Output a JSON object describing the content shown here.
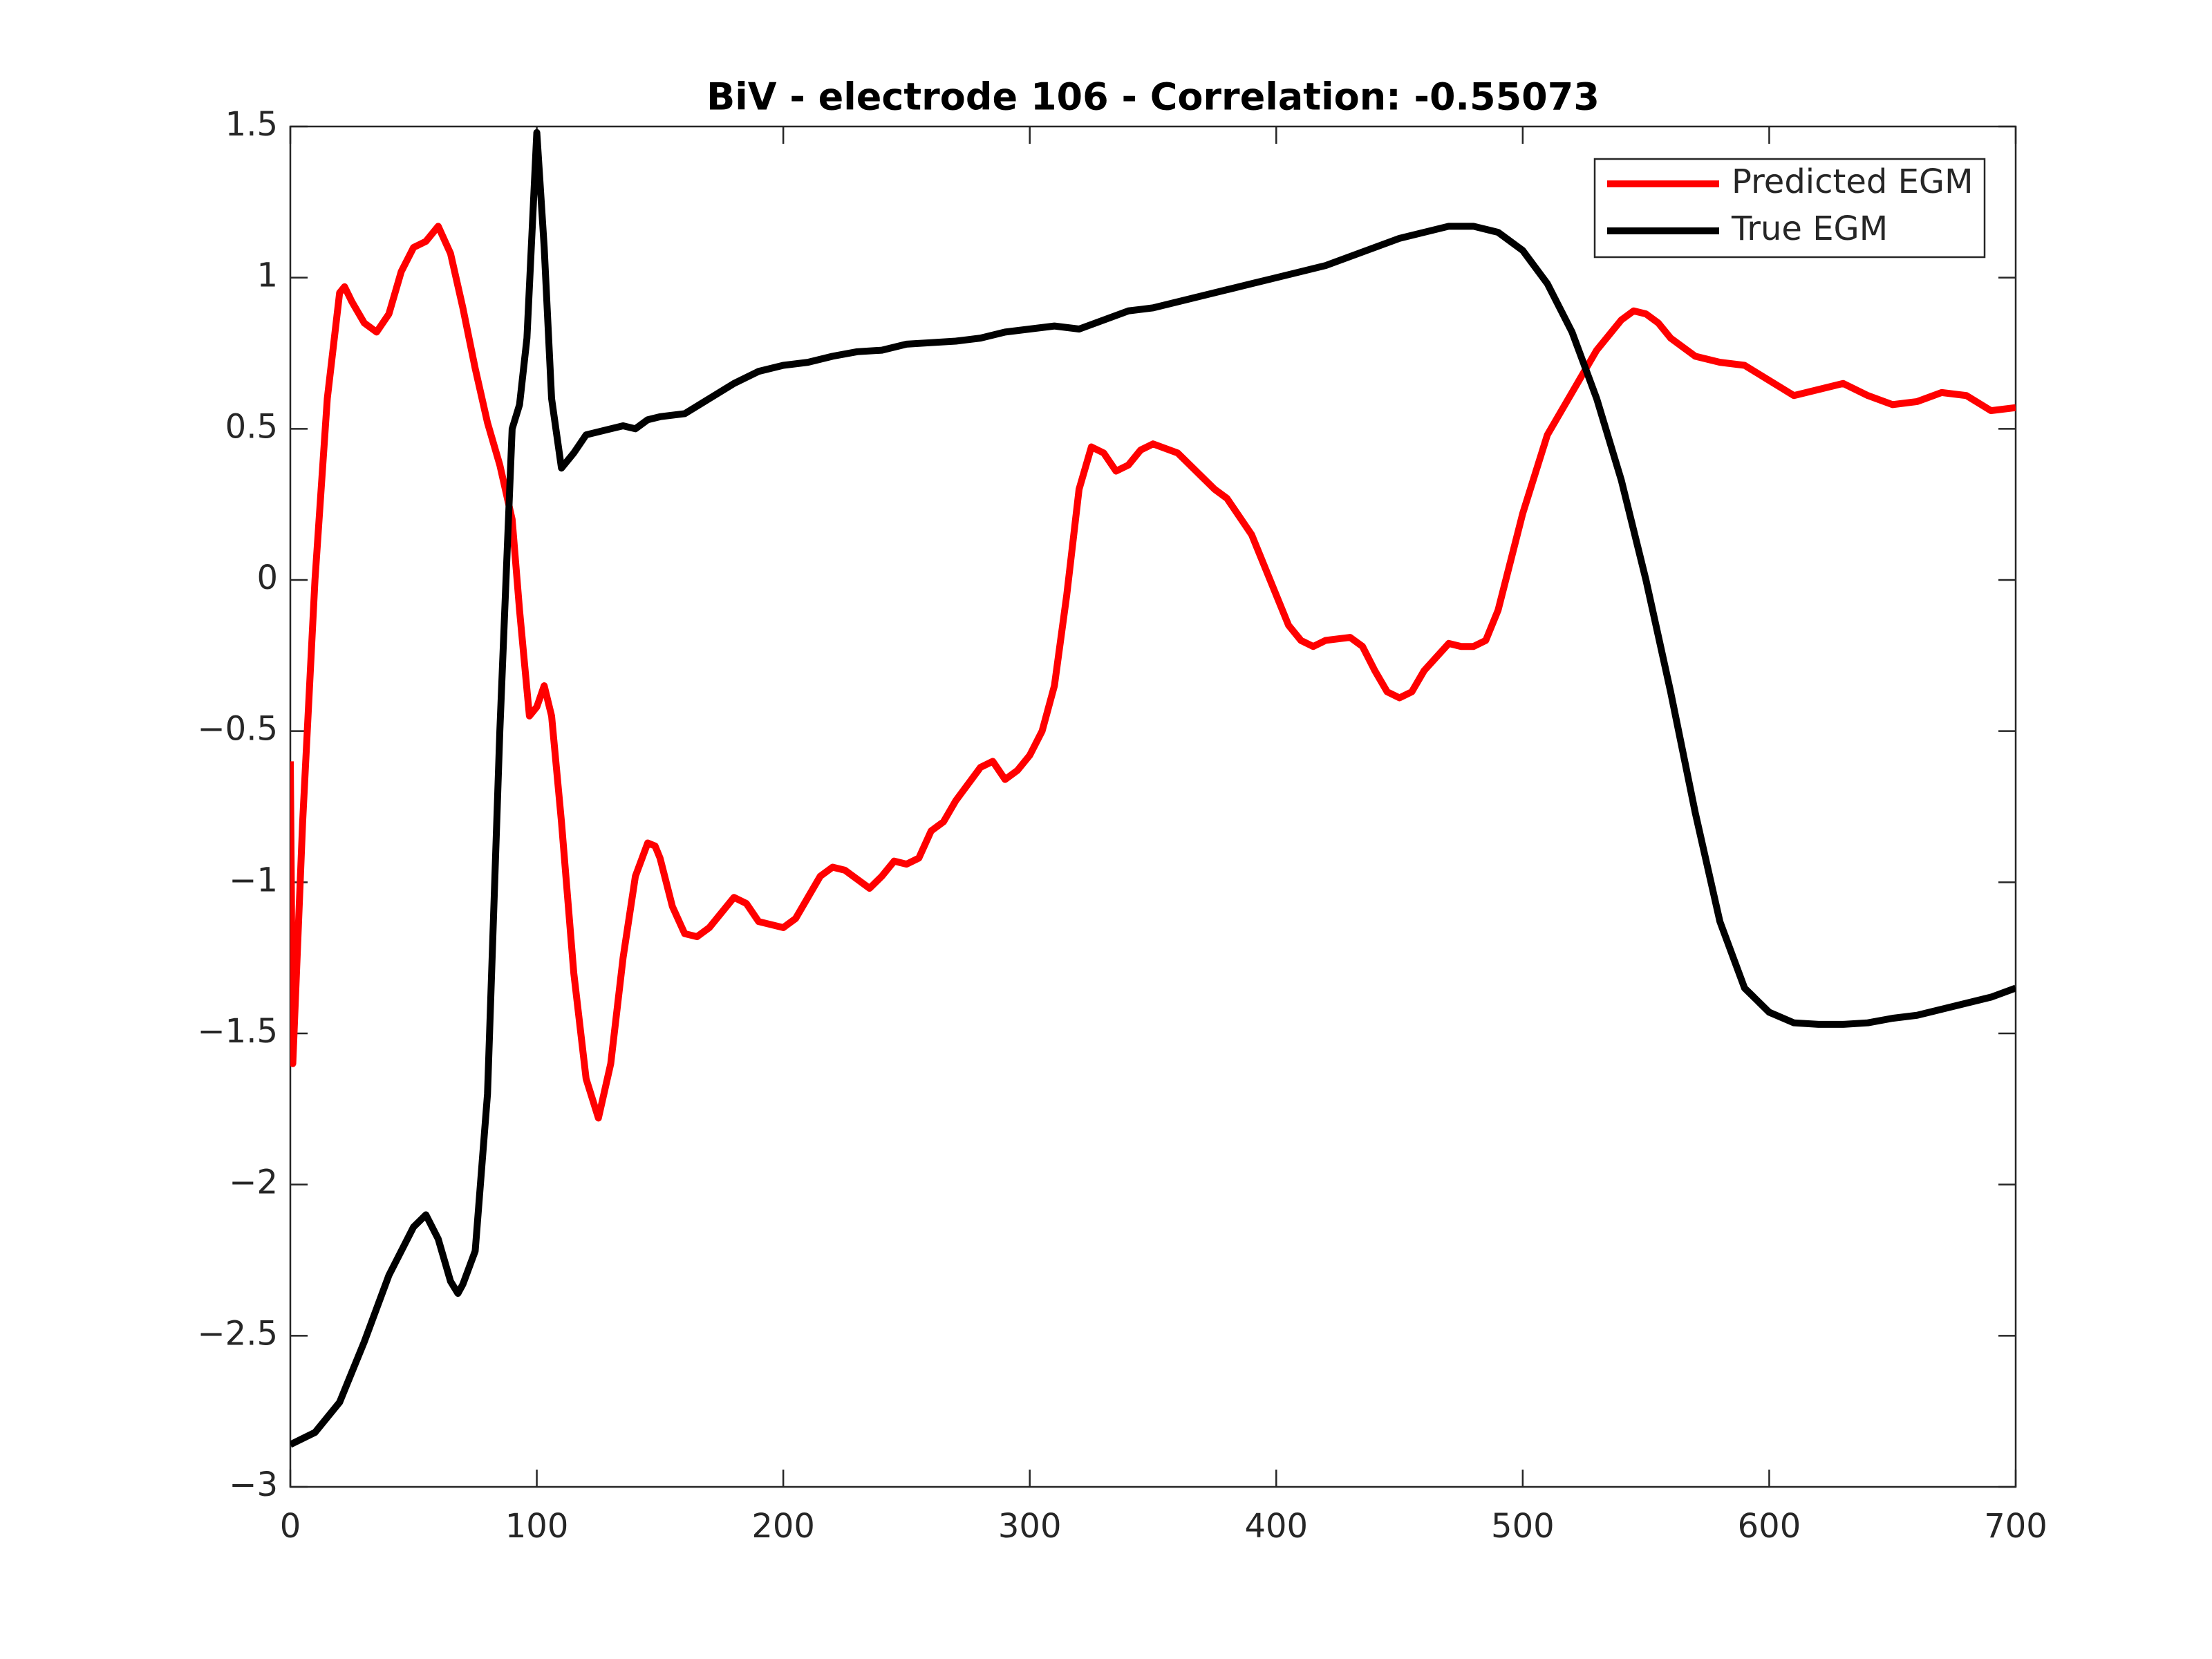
{
  "chart_data": {
    "type": "line",
    "title": "BiV - electrode 106 - Correlation: -0.55073",
    "xlim": [
      0,
      700
    ],
    "xticks": [
      0,
      100,
      200,
      300,
      400,
      500,
      600,
      700
    ],
    "ylim": [
      -3,
      1.5
    ],
    "yticks": [
      {
        "value": -3,
        "label": "−3"
      },
      {
        "value": -2.5,
        "label": "−2.5"
      },
      {
        "value": -2,
        "label": "−2"
      },
      {
        "value": -1.5,
        "label": "−1.5"
      },
      {
        "value": -1,
        "label": "−1"
      },
      {
        "value": -0.5,
        "label": "−0.5"
      },
      0,
      0.5,
      1,
      1.5
    ],
    "legend": "upper right",
    "series": [
      {
        "name": "Predicted EGM",
        "color": "#ff0000",
        "x": [
          0,
          1,
          5,
          10,
          15,
          20,
          22,
          25,
          30,
          35,
          40,
          45,
          50,
          55,
          60,
          65,
          70,
          75,
          80,
          85,
          90,
          93,
          97,
          100,
          103,
          106,
          110,
          115,
          120,
          125,
          130,
          135,
          140,
          145,
          148,
          150,
          155,
          160,
          165,
          170,
          180,
          185,
          190,
          200,
          205,
          210,
          215,
          220,
          225,
          235,
          240,
          245,
          250,
          255,
          260,
          265,
          270,
          280,
          285,
          290,
          295,
          300,
          305,
          310,
          315,
          320,
          325,
          330,
          335,
          340,
          345,
          350,
          360,
          365,
          370,
          375,
          380,
          390,
          400,
          405,
          410,
          415,
          420,
          430,
          435,
          440,
          445,
          450,
          455,
          460,
          470,
          475,
          480,
          485,
          490,
          500,
          510,
          520,
          530,
          540,
          545,
          550,
          555,
          560,
          570,
          580,
          590,
          600,
          610,
          620,
          630,
          640,
          650,
          660,
          670,
          680,
          690,
          700
        ],
        "values": [
          -0.6,
          -1.6,
          -0.8,
          0.0,
          0.6,
          0.95,
          0.97,
          0.92,
          0.85,
          0.82,
          0.88,
          1.02,
          1.1,
          1.12,
          1.17,
          1.08,
          0.9,
          0.7,
          0.52,
          0.38,
          0.2,
          -0.1,
          -0.45,
          -0.42,
          -0.35,
          -0.45,
          -0.8,
          -1.3,
          -1.65,
          -1.78,
          -1.6,
          -1.25,
          -0.98,
          -0.87,
          -0.88,
          -0.92,
          -1.08,
          -1.17,
          -1.18,
          -1.15,
          -1.05,
          -1.07,
          -1.13,
          -1.15,
          -1.12,
          -1.05,
          -0.98,
          -0.95,
          -0.96,
          -1.02,
          -0.98,
          -0.93,
          -0.94,
          -0.92,
          -0.83,
          -0.8,
          -0.73,
          -0.62,
          -0.6,
          -0.66,
          -0.63,
          -0.58,
          -0.5,
          -0.35,
          -0.05,
          0.3,
          0.44,
          0.42,
          0.36,
          0.38,
          0.43,
          0.45,
          0.42,
          0.38,
          0.34,
          0.3,
          0.27,
          0.15,
          -0.05,
          -0.15,
          -0.2,
          -0.22,
          -0.2,
          -0.19,
          -0.22,
          -0.3,
          -0.37,
          -0.39,
          -0.37,
          -0.3,
          -0.21,
          -0.22,
          -0.22,
          -0.2,
          -0.1,
          0.22,
          0.48,
          0.62,
          0.76,
          0.86,
          0.89,
          0.88,
          0.85,
          0.8,
          0.74,
          0.72,
          0.71,
          0.66,
          0.61,
          0.63,
          0.65,
          0.61,
          0.58,
          0.59,
          0.62,
          0.61,
          0.56,
          0.57
        ]
      },
      {
        "name": "True EGM",
        "color": "#000000",
        "x": [
          0,
          10,
          20,
          30,
          40,
          45,
          50,
          55,
          60,
          65,
          68,
          70,
          75,
          80,
          85,
          90,
          93,
          96,
          100,
          103,
          106,
          110,
          115,
          120,
          130,
          135,
          140,
          145,
          150,
          160,
          170,
          180,
          190,
          200,
          210,
          220,
          230,
          240,
          250,
          260,
          270,
          280,
          290,
          300,
          310,
          320,
          330,
          340,
          350,
          360,
          370,
          380,
          390,
          400,
          410,
          420,
          430,
          440,
          450,
          460,
          470,
          480,
          490,
          500,
          510,
          520,
          530,
          540,
          550,
          560,
          570,
          580,
          590,
          600,
          610,
          620,
          630,
          640,
          650,
          660,
          670,
          680,
          690,
          700
        ],
        "values": [
          -2.86,
          -2.82,
          -2.72,
          -2.52,
          -2.3,
          -2.22,
          -2.14,
          -2.1,
          -2.18,
          -2.32,
          -2.36,
          -2.33,
          -2.22,
          -1.7,
          -0.5,
          0.5,
          0.58,
          0.8,
          1.48,
          1.1,
          0.6,
          0.37,
          0.42,
          0.48,
          0.5,
          0.51,
          0.5,
          0.53,
          0.54,
          0.55,
          0.6,
          0.65,
          0.69,
          0.71,
          0.72,
          0.74,
          0.755,
          0.76,
          0.78,
          0.785,
          0.79,
          0.8,
          0.82,
          0.83,
          0.84,
          0.83,
          0.86,
          0.89,
          0.9,
          0.92,
          0.94,
          0.96,
          0.98,
          1.0,
          1.02,
          1.04,
          1.07,
          1.1,
          1.13,
          1.15,
          1.17,
          1.17,
          1.15,
          1.09,
          0.98,
          0.82,
          0.6,
          0.33,
          0.0,
          -0.37,
          -0.77,
          -1.13,
          -1.35,
          -1.43,
          -1.465,
          -1.47,
          -1.47,
          -1.465,
          -1.45,
          -1.44,
          -1.42,
          -1.4,
          -1.38,
          -1.35
        ]
      }
    ]
  }
}
